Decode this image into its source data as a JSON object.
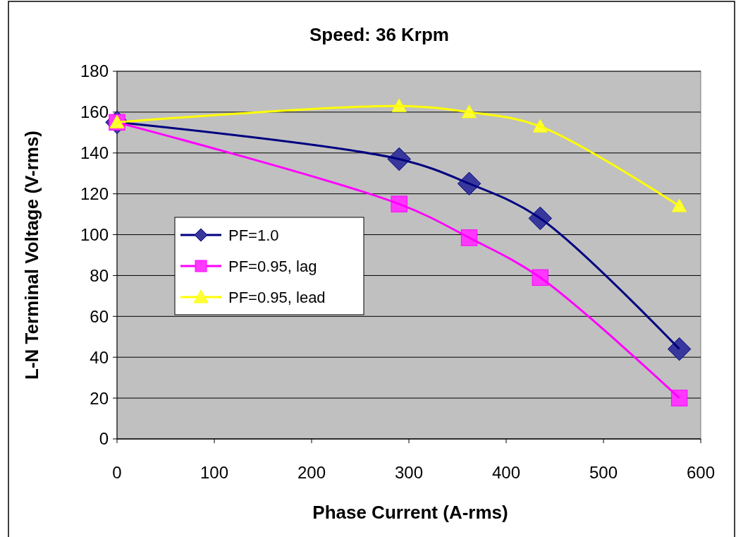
{
  "chart_data": {
    "type": "line",
    "title": "Speed: 36 Krpm",
    "xlabel": "Phase Current (A-rms)",
    "ylabel": "L-N Terminal Voltage (V-rms)",
    "x": [
      0,
      290,
      362,
      435,
      578
    ],
    "series": [
      {
        "name": "PF=1.0",
        "color": "#000080",
        "marker": "diamond",
        "values": [
          155,
          137,
          125,
          108,
          44
        ]
      },
      {
        "name": "PF=0.95, lag",
        "color": "#ff00ff",
        "marker": "square",
        "values": [
          155,
          115,
          98.5,
          79,
          20
        ]
      },
      {
        "name": "PF=0.95, lead",
        "color": "#ffff00",
        "marker": "triangle",
        "values": [
          155,
          163,
          160,
          153,
          114
        ]
      }
    ],
    "xlim": [
      0,
      600
    ],
    "xticks": [
      0,
      100,
      200,
      300,
      400,
      500,
      600
    ],
    "ylim": [
      0,
      180
    ],
    "yticks": [
      0,
      20,
      40,
      60,
      80,
      100,
      120,
      140,
      160,
      180
    ],
    "grid": "y",
    "legend": "left",
    "line_style": "solid"
  }
}
